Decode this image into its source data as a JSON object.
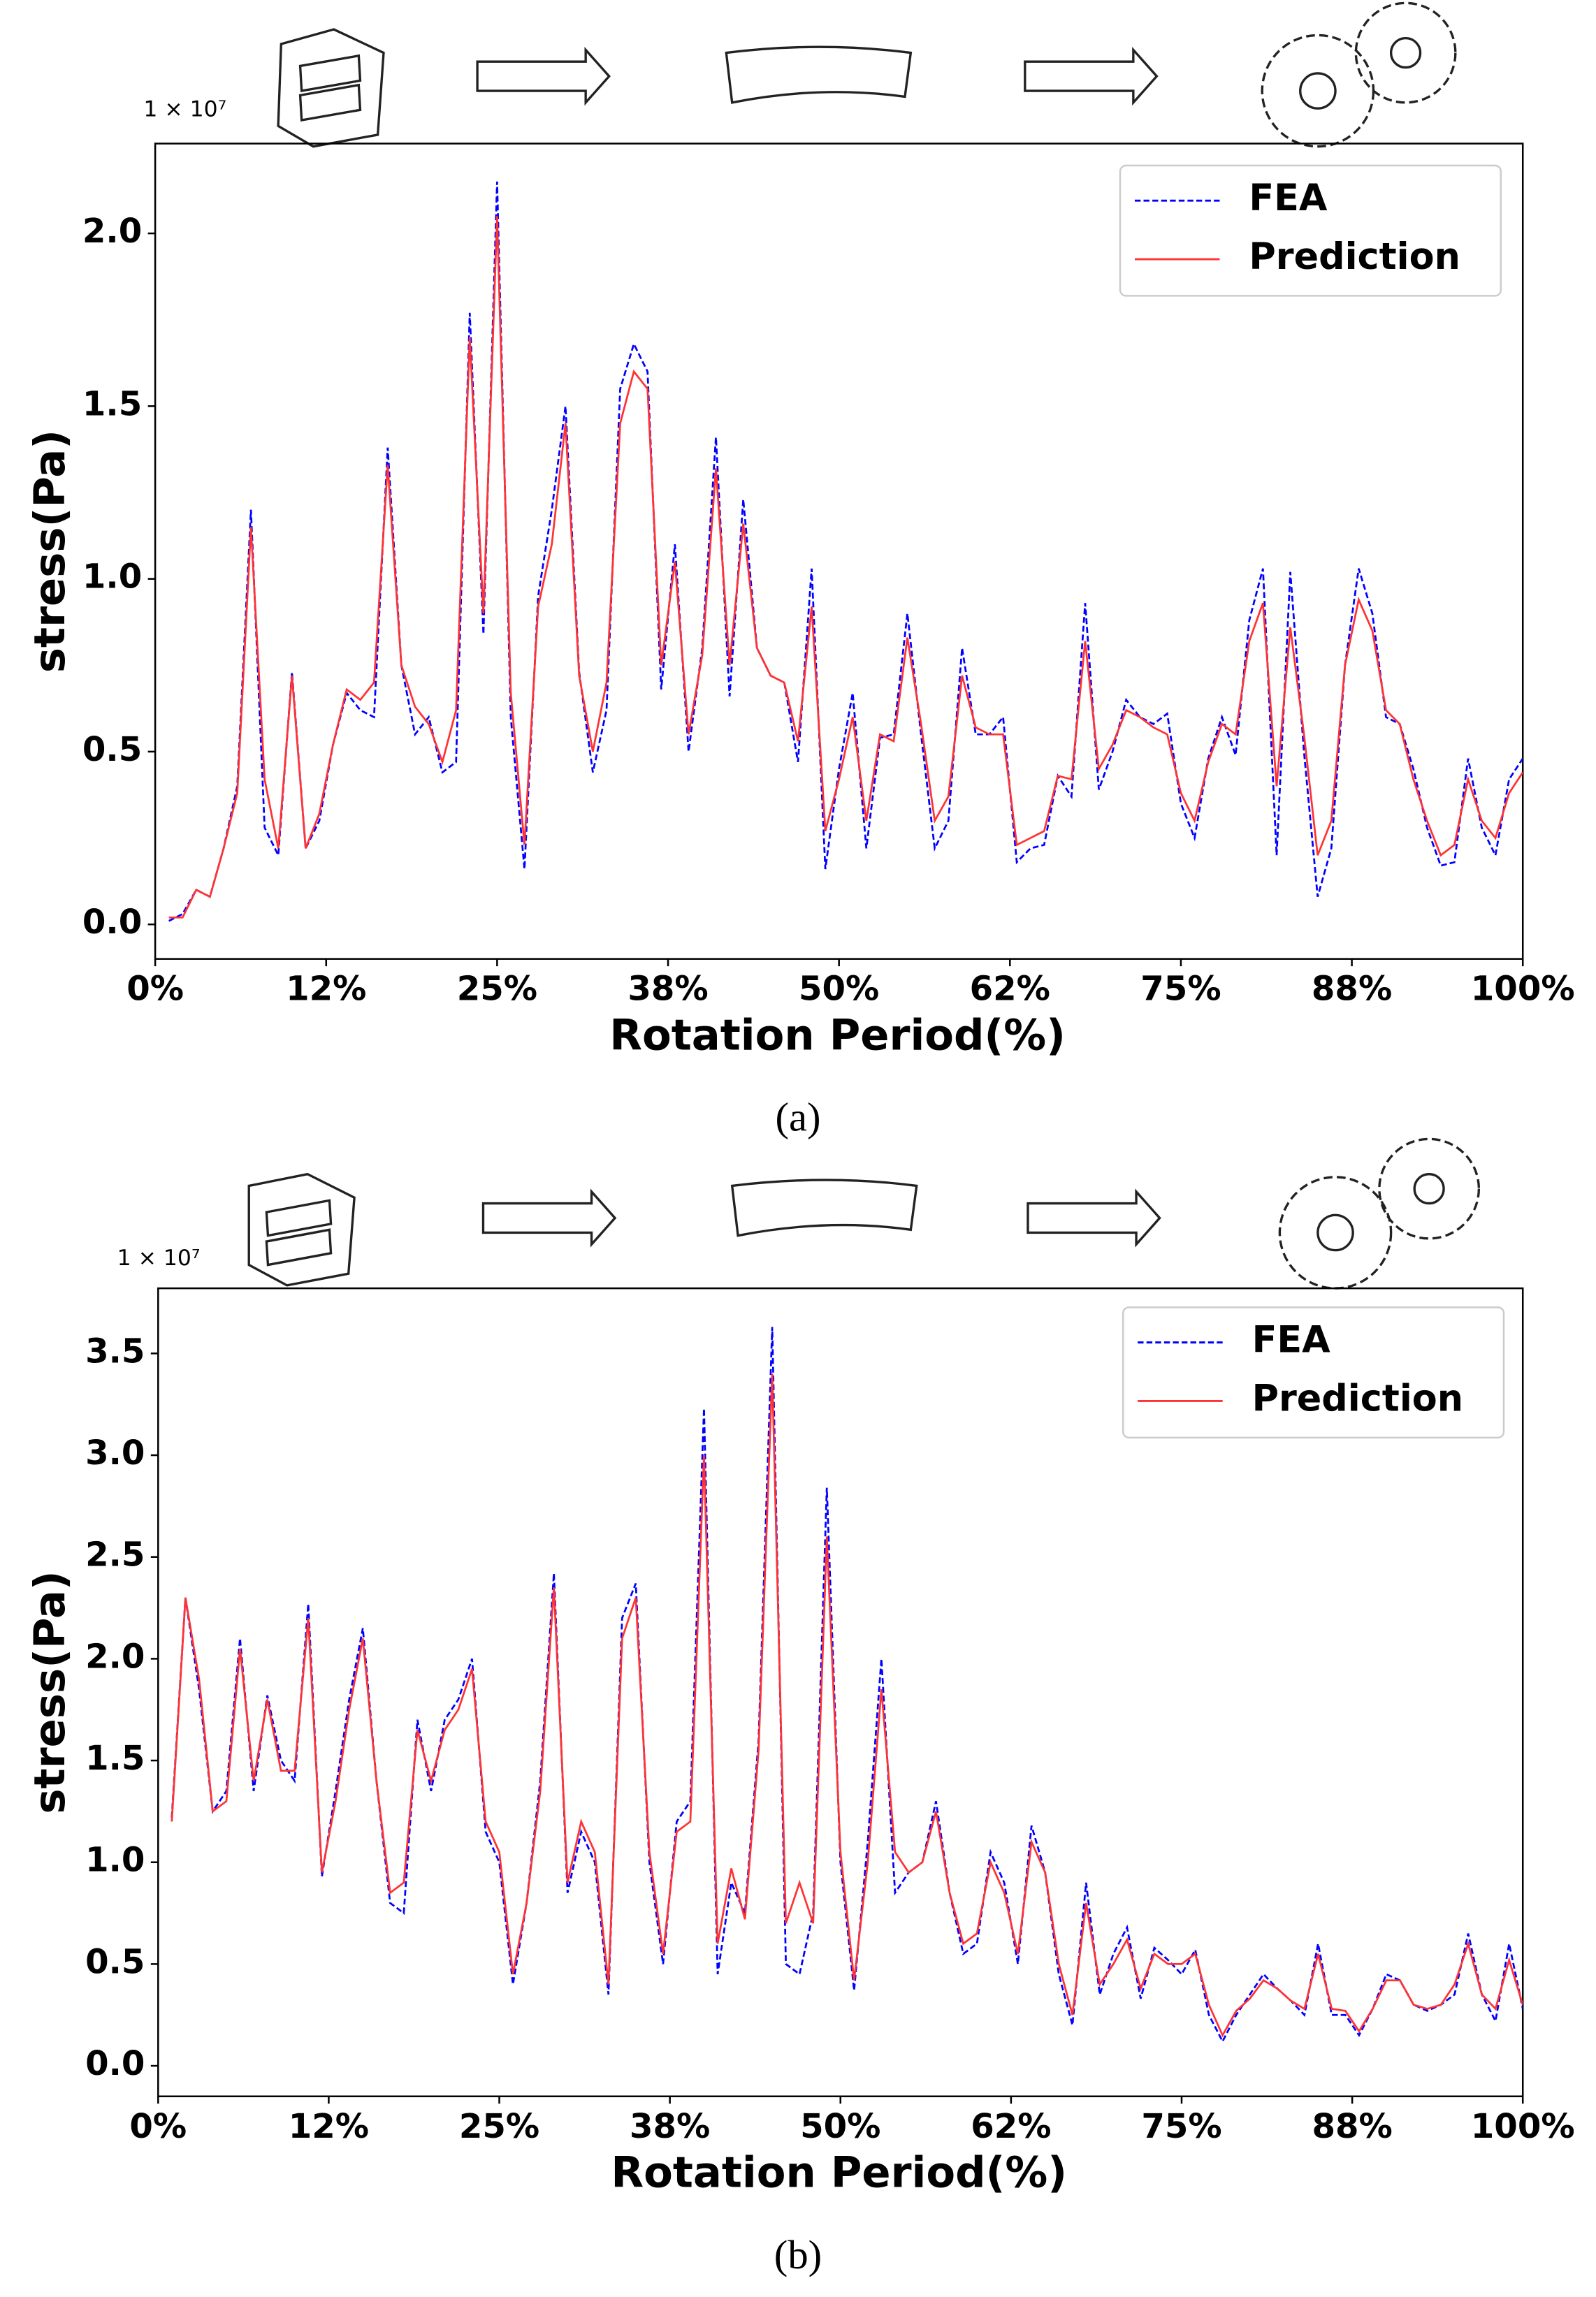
{
  "chart_data": [
    {
      "type": "line",
      "label": "(a)",
      "y_offset_label": "1 × 10⁷",
      "xlabel": "Rotation Period(%)",
      "ylabel": "stress(Pa)",
      "x": [
        1,
        2,
        3,
        4,
        5,
        6,
        7,
        8,
        9,
        10,
        11,
        12,
        13,
        14,
        15,
        16,
        17,
        18,
        19,
        20,
        21,
        22,
        23,
        24,
        25,
        26,
        27,
        28,
        29,
        30,
        31,
        32,
        33,
        34,
        35,
        36,
        37,
        38,
        39,
        40,
        41,
        42,
        43,
        44,
        45,
        46,
        47,
        48,
        49,
        50,
        51,
        52,
        53,
        54,
        55,
        56,
        57,
        58,
        59,
        60,
        61,
        62,
        63,
        64,
        65,
        66,
        67,
        68,
        69,
        70,
        71,
        72,
        73,
        74,
        75,
        76,
        77,
        78,
        79,
        80,
        81,
        82,
        83,
        84,
        85,
        86,
        87,
        88,
        89,
        90,
        91,
        92,
        93,
        94,
        95,
        96,
        97,
        98,
        99,
        100
      ],
      "series": [
        {
          "name": "FEA",
          "color": "#0000ff",
          "linestyle": "dashed",
          "values": [
            0.01,
            0.03,
            0.1,
            0.08,
            0.22,
            0.4,
            1.2,
            0.28,
            0.2,
            0.73,
            0.22,
            0.3,
            0.52,
            0.67,
            0.62,
            0.6,
            1.38,
            0.75,
            0.55,
            0.6,
            0.44,
            0.47,
            1.77,
            0.84,
            2.15,
            0.6,
            0.16,
            0.95,
            1.2,
            1.5,
            0.73,
            0.44,
            0.62,
            1.55,
            1.68,
            1.6,
            0.68,
            1.1,
            0.5,
            0.8,
            1.41,
            0.66,
            1.23,
            0.8,
            0.72,
            0.7,
            0.47,
            1.03,
            0.16,
            0.45,
            0.67,
            0.22,
            0.54,
            0.55,
            0.9,
            0.55,
            0.22,
            0.3,
            0.8,
            0.55,
            0.55,
            0.6,
            0.18,
            0.22,
            0.23,
            0.43,
            0.37,
            0.93,
            0.39,
            0.5,
            0.65,
            0.6,
            0.58,
            0.61,
            0.35,
            0.25,
            0.48,
            0.6,
            0.49,
            0.88,
            1.03,
            0.2,
            1.02,
            0.5,
            0.08,
            0.22,
            0.75,
            1.03,
            0.9,
            0.6,
            0.58,
            0.45,
            0.28,
            0.17,
            0.18,
            0.48,
            0.28,
            0.2,
            0.42,
            0.48
          ]
        },
        {
          "name": "Prediction",
          "color": "#ff3333",
          "linestyle": "solid",
          "values": [
            0.02,
            0.02,
            0.1,
            0.08,
            0.22,
            0.38,
            1.15,
            0.42,
            0.22,
            0.72,
            0.22,
            0.32,
            0.52,
            0.68,
            0.65,
            0.7,
            1.33,
            0.75,
            0.63,
            0.58,
            0.47,
            0.62,
            1.7,
            0.9,
            2.05,
            0.67,
            0.23,
            0.92,
            1.1,
            1.45,
            0.72,
            0.5,
            0.7,
            1.45,
            1.6,
            1.55,
            0.75,
            1.05,
            0.55,
            0.78,
            1.32,
            0.75,
            1.16,
            0.8,
            0.72,
            0.7,
            0.53,
            0.92,
            0.27,
            0.42,
            0.6,
            0.3,
            0.55,
            0.53,
            0.83,
            0.58,
            0.3,
            0.37,
            0.72,
            0.57,
            0.55,
            0.55,
            0.23,
            0.25,
            0.27,
            0.43,
            0.42,
            0.82,
            0.45,
            0.52,
            0.62,
            0.6,
            0.57,
            0.55,
            0.38,
            0.3,
            0.47,
            0.58,
            0.55,
            0.82,
            0.93,
            0.4,
            0.86,
            0.55,
            0.2,
            0.3,
            0.75,
            0.94,
            0.85,
            0.62,
            0.58,
            0.42,
            0.3,
            0.2,
            0.23,
            0.42,
            0.3,
            0.25,
            0.38,
            0.44
          ]
        }
      ],
      "xlim": [
        0,
        100
      ],
      "xticks": [
        {
          "value": 0,
          "label": "0%"
        },
        {
          "value": 12.5,
          "label": "12%"
        },
        {
          "value": 25,
          "label": "25%"
        },
        {
          "value": 37.5,
          "label": "38%"
        },
        {
          "value": 50,
          "label": "50%"
        },
        {
          "value": 62.5,
          "label": "62%"
        },
        {
          "value": 75,
          "label": "75%"
        },
        {
          "value": 87.5,
          "label": "88%"
        },
        {
          "value": 100,
          "label": "100%"
        }
      ],
      "ylim": [
        -0.1,
        2.26
      ],
      "yticks": [
        {
          "value": 0,
          "label": "0.0"
        },
        0.5,
        {
          "value": 1,
          "label": "1.0"
        },
        1.5,
        {
          "value": 2,
          "label": "2.0"
        }
      ],
      "grid": false,
      "legend": "upper right"
    },
    {
      "type": "line",
      "label": "(b)",
      "y_offset_label": "1 × 10⁷",
      "xlabel": "Rotation Period(%)",
      "ylabel": "stress(Pa)",
      "x": [
        1,
        2,
        3,
        4,
        5,
        6,
        7,
        8,
        9,
        10,
        11,
        12,
        13,
        14,
        15,
        16,
        17,
        18,
        19,
        20,
        21,
        22,
        23,
        24,
        25,
        26,
        27,
        28,
        29,
        30,
        31,
        32,
        33,
        34,
        35,
        36,
        37,
        38,
        39,
        40,
        41,
        42,
        43,
        44,
        45,
        46,
        47,
        48,
        49,
        50,
        51,
        52,
        53,
        54,
        55,
        56,
        57,
        58,
        59,
        60,
        61,
        62,
        63,
        64,
        65,
        66,
        67,
        68,
        69,
        70,
        71,
        72,
        73,
        74,
        75,
        76,
        77,
        78,
        79,
        80,
        81,
        82,
        83,
        84,
        85,
        86,
        87,
        88,
        89,
        90,
        91,
        92,
        93,
        94,
        95,
        96,
        97,
        98,
        99,
        100
      ],
      "series": [
        {
          "name": "FEA",
          "color": "#0000ff",
          "linestyle": "dashed",
          "values": [
            1.22,
            2.3,
            1.85,
            1.25,
            1.35,
            2.1,
            1.35,
            1.82,
            1.5,
            1.4,
            2.27,
            0.93,
            1.35,
            1.8,
            2.15,
            1.4,
            0.8,
            0.75,
            1.7,
            1.35,
            1.7,
            1.8,
            2.0,
            1.15,
            1.0,
            0.4,
            0.8,
            1.4,
            2.42,
            0.85,
            1.15,
            1.0,
            0.35,
            2.2,
            2.37,
            1.0,
            0.5,
            1.2,
            1.3,
            3.23,
            0.45,
            0.9,
            0.75,
            1.6,
            3.63,
            0.5,
            0.45,
            0.75,
            2.84,
            1.0,
            0.37,
            1.1,
            2.0,
            0.85,
            0.95,
            1.0,
            1.3,
            0.85,
            0.55,
            0.6,
            1.05,
            0.9,
            0.5,
            1.18,
            0.95,
            0.45,
            0.2,
            0.9,
            0.35,
            0.55,
            0.68,
            0.33,
            0.58,
            0.52,
            0.45,
            0.57,
            0.25,
            0.12,
            0.25,
            0.35,
            0.45,
            0.38,
            0.32,
            0.25,
            0.6,
            0.25,
            0.25,
            0.15,
            0.28,
            0.45,
            0.42,
            0.3,
            0.27,
            0.3,
            0.35,
            0.65,
            0.35,
            0.22,
            0.6,
            0.28
          ]
        },
        {
          "name": "Prediction",
          "color": "#ff3333",
          "linestyle": "solid",
          "values": [
            1.2,
            2.3,
            1.9,
            1.25,
            1.3,
            2.05,
            1.4,
            1.8,
            1.45,
            1.45,
            2.2,
            0.95,
            1.3,
            1.75,
            2.1,
            1.4,
            0.85,
            0.9,
            1.65,
            1.4,
            1.65,
            1.75,
            1.95,
            1.2,
            1.05,
            0.45,
            0.8,
            1.35,
            2.35,
            0.9,
            1.2,
            1.05,
            0.4,
            2.1,
            2.3,
            1.05,
            0.55,
            1.15,
            1.2,
            3.0,
            0.6,
            0.97,
            0.72,
            1.55,
            3.4,
            0.7,
            0.9,
            0.7,
            2.6,
            1.05,
            0.42,
            1.0,
            1.85,
            1.05,
            0.95,
            1.0,
            1.25,
            0.85,
            0.6,
            0.65,
            1.0,
            0.85,
            0.55,
            1.1,
            0.95,
            0.5,
            0.25,
            0.8,
            0.4,
            0.5,
            0.62,
            0.38,
            0.55,
            0.5,
            0.5,
            0.55,
            0.3,
            0.15,
            0.27,
            0.33,
            0.42,
            0.38,
            0.32,
            0.28,
            0.55,
            0.28,
            0.27,
            0.17,
            0.28,
            0.42,
            0.42,
            0.3,
            0.28,
            0.3,
            0.4,
            0.6,
            0.35,
            0.28,
            0.52,
            0.3
          ]
        }
      ],
      "xlim": [
        0,
        100
      ],
      "xticks": [
        {
          "value": 0,
          "label": "0%"
        },
        {
          "value": 12.5,
          "label": "12%"
        },
        {
          "value": 25,
          "label": "25%"
        },
        {
          "value": 37.5,
          "label": "38%"
        },
        {
          "value": 50,
          "label": "50%"
        },
        {
          "value": 62.5,
          "label": "62%"
        },
        {
          "value": 75,
          "label": "75%"
        },
        {
          "value": 87.5,
          "label": "88%"
        },
        {
          "value": 100,
          "label": "100%"
        }
      ],
      "ylim": [
        -0.15,
        3.82
      ],
      "yticks": [
        {
          "value": 0,
          "label": "0.0"
        },
        0.5,
        {
          "value": 1,
          "label": "1.0"
        },
        1.5,
        {
          "value": 2,
          "label": "2.0"
        },
        2.5,
        {
          "value": 3,
          "label": "3.0"
        },
        3.5
      ],
      "grid": false,
      "legend": "upper right"
    }
  ]
}
